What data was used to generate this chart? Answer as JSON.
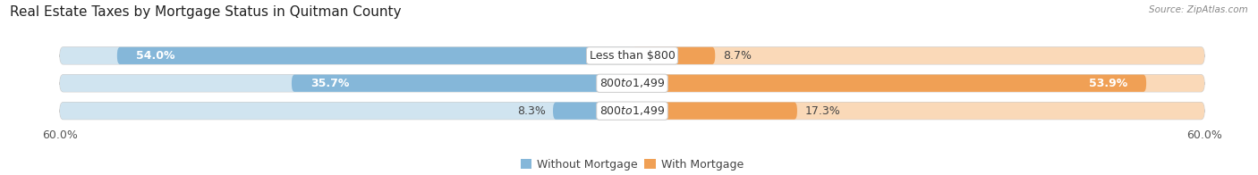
{
  "title": "Real Estate Taxes by Mortgage Status in Quitman County",
  "source": "Source: ZipAtlas.com",
  "rows": [
    {
      "label": "Less than $800",
      "without_mortgage": 54.0,
      "with_mortgage": 8.7
    },
    {
      "label": "$800 to $1,499",
      "without_mortgage": 35.7,
      "with_mortgage": 53.9
    },
    {
      "label": "$800 to $1,499",
      "without_mortgage": 8.3,
      "with_mortgage": 17.3
    }
  ],
  "axis_max": 60.0,
  "axis_label_left": "60.0%",
  "axis_label_right": "60.0%",
  "color_without": "#85b7d9",
  "color_with": "#f0a055",
  "color_without_bg": "#d0e4f0",
  "color_with_bg": "#fad9b8",
  "bar_bg_color": "#ebebeb",
  "bar_bg_border": "#d8d8d8",
  "bar_height": 0.62,
  "legend_without": "Without Mortgage",
  "legend_with": "With Mortgage",
  "title_fontsize": 11,
  "label_fontsize": 9,
  "pct_fontsize": 9,
  "tick_fontsize": 9
}
